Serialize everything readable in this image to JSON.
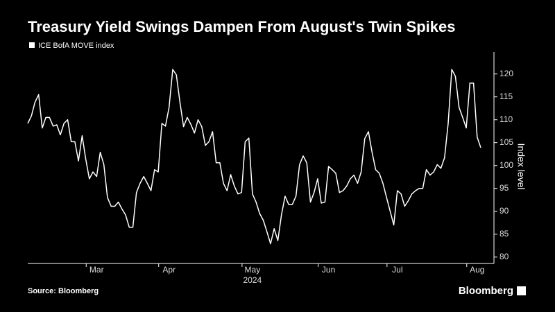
{
  "chart_data": {
    "type": "line",
    "title": "Treasury Yield Swings Dampen From August's Twin Spikes",
    "source": "Source: Bloomberg",
    "brand": "Bloomberg",
    "y_axis_label": "Index level",
    "x_axis_label": "2024",
    "categories": [
      null,
      null,
      null,
      null,
      null,
      null,
      null,
      null,
      null,
      null,
      null,
      null,
      null,
      null,
      null,
      null,
      null,
      null,
      null,
      "Mar",
      null,
      null,
      null,
      null,
      null,
      null,
      null,
      null,
      null,
      null,
      null,
      null,
      null,
      null,
      null,
      null,
      null,
      null,
      null,
      "Apr",
      null,
      null,
      null,
      null,
      null,
      null,
      null,
      null,
      null,
      null,
      null,
      null,
      null,
      null,
      null,
      null,
      null,
      null,
      null,
      null,
      null,
      null,
      "May",
      null,
      null,
      null,
      null,
      null,
      null,
      null,
      null,
      null,
      null,
      null,
      null,
      null,
      null,
      null,
      null,
      null,
      null,
      null,
      null,
      "Jun",
      null,
      null,
      null,
      null,
      null,
      null,
      null,
      null,
      null,
      null,
      null,
      null,
      null,
      null,
      null,
      null,
      null,
      null,
      "Jul",
      null,
      null,
      null,
      null,
      null,
      null,
      null,
      null,
      null,
      null,
      null,
      null,
      null,
      null,
      null,
      null,
      null,
      null,
      null,
      null,
      null,
      "Aug",
      null
    ],
    "series": [
      {
        "name": "ICE BofA MOVE index",
        "color": "#ffffff",
        "values": [
          109.2,
          110.8,
          113.8,
          115.5,
          108.2,
          110.5,
          110.5,
          108.6,
          108.9,
          106.7,
          109.2,
          110,
          105.2,
          105.2,
          101,
          106.5,
          101.4,
          97.1,
          98.6,
          97.6,
          102.9,
          100.2,
          93,
          91.1,
          91.1,
          92,
          90.5,
          89.2,
          86.5,
          86.5,
          94.1,
          96.1,
          97.6,
          96.1,
          94.5,
          99.1,
          98.6,
          109.2,
          108.6,
          112.7,
          121,
          119.8,
          113.8,
          108.5,
          110.5,
          109,
          107.1,
          110,
          108.5,
          104.4,
          105.2,
          107.4,
          100.6,
          100.6,
          96.1,
          94.5,
          98,
          95.5,
          93.8,
          94.1,
          105.2,
          106,
          93.8,
          92,
          89.5,
          88,
          85.5,
          82.9,
          86.2,
          83.6,
          89.2,
          93.3,
          91.5,
          91.5,
          93.3,
          100.2,
          102.1,
          100.6,
          92,
          94.1,
          97.1,
          91.8,
          92,
          99.8,
          99.1,
          98.3,
          94.1,
          94.5,
          95.5,
          97.1,
          97.9,
          96.1,
          98.6,
          105.9,
          107.4,
          102.9,
          99.1,
          98.3,
          96.1,
          93,
          90,
          87,
          94.5,
          93.8,
          91.1,
          92.3,
          93.8,
          94.5,
          95,
          95,
          99.1,
          97.9,
          98.6,
          100.2,
          99.4,
          101.7,
          109.2,
          121,
          119.5,
          112.7,
          110.5,
          108.2,
          118,
          118,
          106.2,
          103.9
        ]
      }
    ],
    "ylim": [
      78.6,
      124.8
    ],
    "yticks": [
      80,
      85,
      90,
      95,
      100,
      105,
      110,
      115,
      120
    ]
  }
}
